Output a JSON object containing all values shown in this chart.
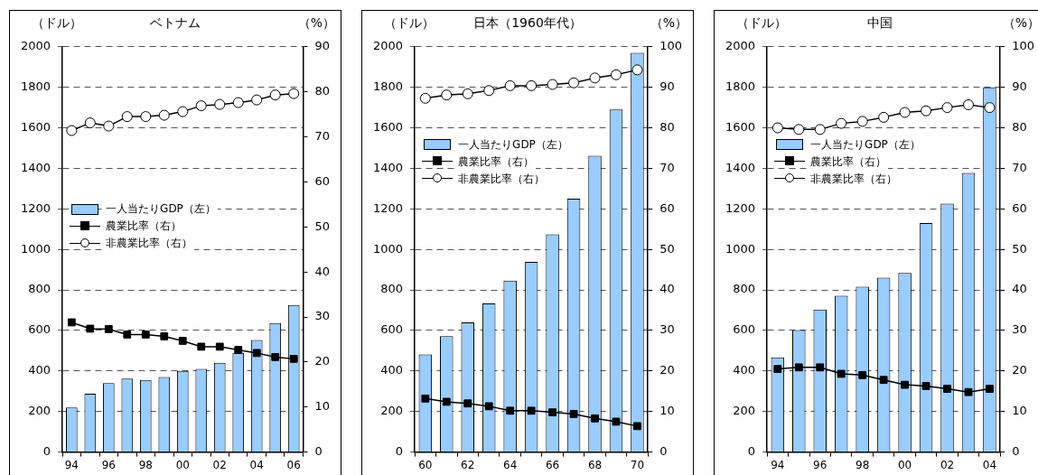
{
  "chart_data": [
    {
      "type": "bar",
      "title": "ベトナム",
      "ylabel": "（ドル）",
      "y2label": "（%）",
      "categories": [
        "94",
        null,
        "96",
        null,
        "98",
        null,
        "00",
        null,
        "02",
        null,
        "04",
        null,
        "06"
      ],
      "series": [
        {
          "name": "一人当たりGDP（左）",
          "color": "#99ccff",
          "values": [
            220,
            288,
            340,
            362,
            356,
            370,
            400,
            410,
            440,
            490,
            553,
            637,
            726
          ]
        },
        {
          "name": "農業比率（右）",
          "type": "line",
          "axis": "y2",
          "color": "#000000",
          "marker": "square",
          "values": [
            28.8,
            27.4,
            27.3,
            26.1,
            26.1,
            25.7,
            24.7,
            23.4,
            23.4,
            22.7,
            22.0,
            21.1,
            20.7
          ]
        },
        {
          "name": "非農業比率（右）",
          "type": "line",
          "axis": "y2",
          "color": "#000000",
          "marker": "circle",
          "values": [
            71.4,
            73.1,
            72.4,
            74.5,
            74.5,
            74.8,
            75.6,
            76.9,
            77.2,
            77.6,
            78.2,
            79.3,
            79.6
          ]
        }
      ],
      "ylim": [
        0,
        2000
      ],
      "yticks": [
        0,
        200,
        400,
        600,
        800,
        1000,
        1200,
        1400,
        1600,
        1800,
        2000
      ],
      "y2lim": [
        0,
        90
      ],
      "y2ticks": [
        0,
        10,
        20,
        30,
        40,
        50,
        60,
        70,
        80,
        90
      ],
      "grid": "y",
      "legend": "left"
    },
    {
      "type": "bar",
      "title": "日本（1960年代）",
      "ylabel": "（ドル）",
      "y2label": "（%）",
      "categories": [
        "60",
        null,
        "62",
        null,
        "64",
        null,
        "66",
        null,
        "68",
        null,
        "70"
      ],
      "series": [
        {
          "name": "一人当たりGDP（左）",
          "color": "#99ccff",
          "values": [
            482,
            572,
            640,
            733,
            846,
            938,
            1074,
            1250,
            1462,
            1690,
            1970
          ]
        },
        {
          "name": "農業比率（右）",
          "type": "line",
          "axis": "y2",
          "color": "#000000",
          "marker": "square",
          "values": [
            13.2,
            12.4,
            12.0,
            11.3,
            10.2,
            10.2,
            9.8,
            9.4,
            8.3,
            7.5,
            6.4
          ]
        },
        {
          "name": "非農業比率（右）",
          "type": "line",
          "axis": "y2",
          "color": "#000000",
          "marker": "circle",
          "values": [
            87.3,
            88.1,
            88.4,
            89.2,
            90.4,
            90.4,
            90.7,
            91.1,
            92.3,
            93.1,
            94.3
          ]
        }
      ],
      "ylim": [
        0,
        2000
      ],
      "yticks": [
        0,
        200,
        400,
        600,
        800,
        1000,
        1200,
        1400,
        1600,
        1800,
        2000
      ],
      "y2lim": [
        0,
        100
      ],
      "y2ticks": [
        0,
        10,
        20,
        30,
        40,
        50,
        60,
        70,
        80,
        90,
        100
      ],
      "grid": "y",
      "legend": "top left"
    },
    {
      "type": "bar",
      "title": "中国",
      "ylabel": "（ドル）",
      "y2label": "（%）",
      "categories": [
        "94",
        null,
        "96",
        null,
        "98",
        null,
        "00",
        null,
        "02",
        null,
        "04"
      ],
      "series": [
        {
          "name": "一人当たりGDP（左）",
          "color": "#99ccff",
          "values": [
            467,
            602,
            703,
            771,
            816,
            861,
            884,
            1130,
            1226,
            1378,
            1800
          ]
        },
        {
          "name": "農業比率（右）",
          "type": "line",
          "axis": "y2",
          "color": "#000000",
          "marker": "square",
          "values": [
            20.5,
            20.9,
            20.9,
            19.3,
            19.0,
            17.8,
            16.6,
            16.3,
            15.6,
            14.8,
            15.6
          ]
        },
        {
          "name": "非農業比率（右）",
          "type": "line",
          "axis": "y2",
          "color": "#000000",
          "marker": "circle",
          "values": [
            80.0,
            79.6,
            79.6,
            81.1,
            81.6,
            82.6,
            83.8,
            84.2,
            85.0,
            85.7,
            85.0
          ]
        }
      ],
      "ylim": [
        0,
        2000
      ],
      "yticks": [
        0,
        200,
        400,
        600,
        800,
        1000,
        1200,
        1400,
        1600,
        1800,
        2000
      ],
      "y2lim": [
        0,
        100
      ],
      "y2ticks": [
        0,
        10,
        20,
        30,
        40,
        50,
        60,
        70,
        80,
        90,
        100
      ],
      "grid": "y",
      "legend": "top left"
    }
  ]
}
